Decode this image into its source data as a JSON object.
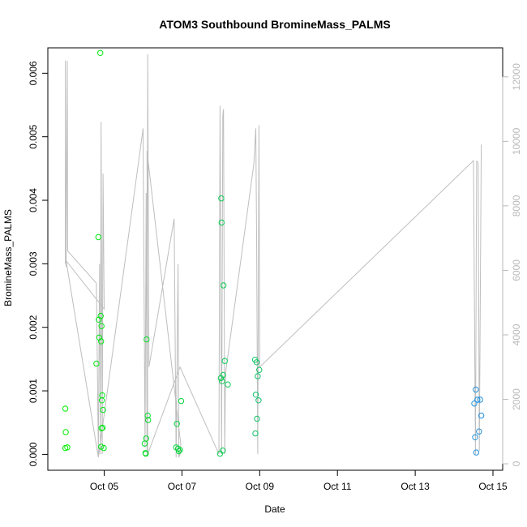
{
  "chart_data": {
    "type": "scatter",
    "title": "ATOM3 Southbound BromineMass_PALMS",
    "xlabel": "Date",
    "ylabel": "BromineMass_PALMS",
    "x_tick_labels": [
      "Oct 05",
      "Oct 07",
      "Oct 09",
      "Oct 11",
      "Oct 13",
      "Oct 15"
    ],
    "x_tick_days": [
      5,
      7,
      9,
      11,
      13,
      15
    ],
    "xlim_days": [
      3.55,
      15.25
    ],
    "ylim": [
      -0.00025,
      0.0064
    ],
    "y_ticks": [
      0.0,
      0.001,
      0.002,
      0.003,
      0.004,
      0.005,
      0.006
    ],
    "y_tick_labels": [
      "0.000",
      "0.001",
      "0.002",
      "0.003",
      "0.004",
      "0.005",
      "0.006"
    ],
    "y2_ticks": [
      0,
      2000,
      4000,
      6000,
      8000,
      10000,
      12000
    ],
    "y2_tick_labels": [
      "0",
      "2000",
      "4000",
      "6000",
      "8000",
      "10000",
      "12000"
    ],
    "y2lim": [
      -200,
      12900
    ],
    "colors": {
      "points_early": "#00ee00",
      "points_late": "#1f8fe0",
      "line": "#bebebe",
      "axis": "#000000",
      "right_axis": "#b9b9b9"
    },
    "series": [
      {
        "values": [
          {
            "x": 4.0,
            "y": 0.00072
          },
          {
            "x": 4.01,
            "y": 0.00035
          },
          {
            "x": 4.0,
            "y": 0.0001
          },
          {
            "x": 4.05,
            "y": 0.00011
          },
          {
            "x": 4.8,
            "y": 0.00143
          },
          {
            "x": 4.85,
            "y": 0.00342
          },
          {
            "x": 4.86,
            "y": 0.00212
          },
          {
            "x": 4.87,
            "y": 0.00184
          },
          {
            "x": 4.9,
            "y": 0.00632
          },
          {
            "x": 4.91,
            "y": 0.00218
          },
          {
            "x": 4.92,
            "y": 0.00178
          },
          {
            "x": 4.93,
            "y": 0.00202
          },
          {
            "x": 4.94,
            "y": 0.00085
          },
          {
            "x": 4.95,
            "y": 0.00093
          },
          {
            "x": 4.96,
            "y": 0.00042
          },
          {
            "x": 4.93,
            "y": 0.00041
          },
          {
            "x": 4.97,
            "y": 0.0007
          },
          {
            "x": 4.92,
            "y": 0.00012
          },
          {
            "x": 4.99,
            "y": 0.0001
          },
          {
            "x": 6.04,
            "y": 0.00017
          },
          {
            "x": 6.06,
            "y": 2e-05
          },
          {
            "x": 6.07,
            "y": 1e-05
          },
          {
            "x": 6.08,
            "y": 0.00025
          },
          {
            "x": 6.09,
            "y": 0.00181
          },
          {
            "x": 6.12,
            "y": 0.00061
          },
          {
            "x": 6.13,
            "y": 0.00054
          },
          {
            "x": 6.85,
            "y": 0.00011
          },
          {
            "x": 6.87,
            "y": 0.00048
          },
          {
            "x": 6.9,
            "y": 9e-05
          },
          {
            "x": 6.92,
            "y": 5e-05
          },
          {
            "x": 6.95,
            "y": 7e-05
          },
          {
            "x": 6.98,
            "y": 0.00084
          },
          {
            "x": 7.98,
            "y": 1e-05
          },
          {
            "x": 8.0,
            "y": 0.0012
          },
          {
            "x": 8.01,
            "y": 0.00403
          },
          {
            "x": 8.02,
            "y": 0.00365
          },
          {
            "x": 8.03,
            "y": 0.00115
          },
          {
            "x": 8.05,
            "y": 6e-05
          },
          {
            "x": 8.06,
            "y": 0.00125
          },
          {
            "x": 8.07,
            "y": 0.00266
          },
          {
            "x": 8.1,
            "y": 0.00147
          },
          {
            "x": 8.18,
            "y": 0.0011
          },
          {
            "x": 8.88,
            "y": 0.00149
          },
          {
            "x": 8.89,
            "y": 0.00033
          },
          {
            "x": 8.9,
            "y": 0.00094
          },
          {
            "x": 8.92,
            "y": 0.00145
          },
          {
            "x": 8.93,
            "y": 0.00056
          },
          {
            "x": 8.95,
            "y": 0.00123
          },
          {
            "x": 8.97,
            "y": 0.00085
          },
          {
            "x": 8.99,
            "y": 0.00133
          },
          {
            "x": 14.52,
            "y": 0.0008
          },
          {
            "x": 14.54,
            "y": 0.00027
          },
          {
            "x": 14.56,
            "y": 0.00102
          },
          {
            "x": 14.57,
            "y": 3e-05
          },
          {
            "x": 14.6,
            "y": 0.00086
          },
          {
            "x": 14.64,
            "y": 0.00036
          },
          {
            "x": 14.67,
            "y": 0.00086
          },
          {
            "x": 14.7,
            "y": 0.00061
          }
        ]
      }
    ],
    "line_right_axis": [
      [
        4.0,
        6200
      ],
      [
        4.0,
        12500
      ],
      [
        4.02,
        6100
      ],
      [
        4.05,
        12500
      ],
      [
        4.06,
        6600
      ],
      [
        4.8,
        5600
      ],
      [
        4.85,
        300
      ],
      [
        4.88,
        6200
      ],
      [
        4.9,
        300
      ],
      [
        4.92,
        10600
      ],
      [
        4.95,
        300
      ],
      [
        4.97,
        9000
      ],
      [
        5.0,
        4800
      ],
      [
        4.02,
        6300
      ],
      [
        4.85,
        200
      ],
      [
        6.0,
        10400
      ],
      [
        6.05,
        500
      ],
      [
        6.08,
        8400
      ],
      [
        6.1,
        300
      ],
      [
        6.12,
        12700
      ],
      [
        6.15,
        3000
      ],
      [
        6.8,
        7600
      ],
      [
        6.85,
        200
      ],
      [
        6.9,
        6200
      ],
      [
        6.92,
        200
      ],
      [
        6.95,
        300
      ],
      [
        6.97,
        600
      ],
      [
        6.1,
        9700
      ],
      [
        6.12,
        300
      ],
      [
        6.95,
        3000
      ],
      [
        7.95,
        300
      ],
      [
        7.98,
        11100
      ],
      [
        8.02,
        300
      ],
      [
        8.05,
        10800
      ],
      [
        8.07,
        11000
      ],
      [
        8.1,
        300
      ],
      [
        8.12,
        2800
      ],
      [
        8.85,
        9300
      ],
      [
        8.9,
        10400
      ],
      [
        8.92,
        7000
      ],
      [
        8.95,
        300
      ],
      [
        8.98,
        10500
      ],
      [
        9.0,
        3000
      ],
      [
        14.5,
        9400
      ],
      [
        14.55,
        300
      ],
      [
        14.58,
        9400
      ],
      [
        14.62,
        9300
      ],
      [
        14.65,
        400
      ],
      [
        14.7,
        9900
      ]
    ]
  }
}
